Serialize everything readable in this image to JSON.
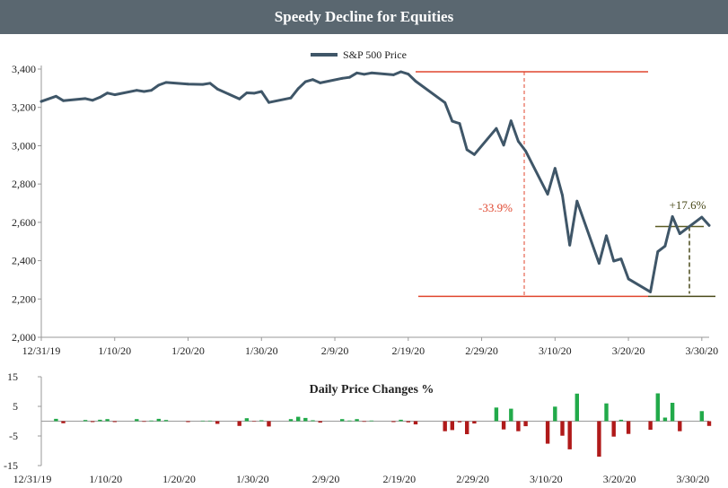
{
  "chart_data": [
    {
      "type": "line",
      "title": "Speedy Decline for Equities",
      "legend": [
        "S&P 500 Price"
      ],
      "legend_position": "top-center",
      "ylim": [
        2000,
        3400
      ],
      "yticks": [
        2000,
        2200,
        2400,
        2600,
        2800,
        3000,
        3200,
        3400
      ],
      "ytick_labels": [
        "2,000",
        "2,200",
        "2,400",
        "2,600",
        "2,800",
        "3,000",
        "3,200",
        "3,400"
      ],
      "xlim_days": [
        0,
        91
      ],
      "xtick_labels": [
        "12/31/19",
        "1/10/20",
        "1/20/20",
        "1/30/20",
        "2/9/20",
        "2/19/20",
        "2/29/20",
        "3/10/20",
        "3/20/20",
        "3/30/20"
      ],
      "series": [
        {
          "name": "S&P 500 Price",
          "color": "#3f5668",
          "points": [
            [
              0,
              3231
            ],
            [
              2,
              3258
            ],
            [
              3,
              3235
            ],
            [
              6,
              3246
            ],
            [
              7,
              3237
            ],
            [
              8,
              3253
            ],
            [
              9,
              3275
            ],
            [
              10,
              3266
            ],
            [
              13,
              3289
            ],
            [
              14,
              3283
            ],
            [
              15,
              3289
            ],
            [
              16,
              3316
            ],
            [
              17,
              3330
            ],
            [
              20,
              3322
            ],
            [
              22,
              3320
            ],
            [
              23,
              3326
            ],
            [
              24,
              3296
            ],
            [
              27,
              3244
            ],
            [
              28,
              3276
            ],
            [
              29,
              3274
            ],
            [
              30,
              3283
            ],
            [
              31,
              3226
            ],
            [
              34,
              3249
            ],
            [
              35,
              3298
            ],
            [
              36,
              3334
            ],
            [
              37,
              3345
            ],
            [
              38,
              3328
            ],
            [
              41,
              3352
            ],
            [
              42,
              3357
            ],
            [
              43,
              3380
            ],
            [
              44,
              3373
            ],
            [
              45,
              3380
            ],
            [
              48,
              3370
            ],
            [
              49,
              3386
            ],
            [
              50,
              3374
            ],
            [
              51,
              3337
            ],
            [
              55,
              3225
            ],
            [
              56,
              3128
            ],
            [
              57,
              3116
            ],
            [
              58,
              2979
            ],
            [
              59,
              2954
            ],
            [
              62,
              3090
            ],
            [
              63,
              3003
            ],
            [
              64,
              3130
            ],
            [
              65,
              3023
            ],
            [
              66,
              2972
            ],
            [
              69,
              2747
            ],
            [
              70,
              2882
            ],
            [
              71,
              2741
            ],
            [
              72,
              2481
            ],
            [
              73,
              2711
            ],
            [
              76,
              2386
            ],
            [
              77,
              2530
            ],
            [
              78,
              2398
            ],
            [
              79,
              2409
            ],
            [
              80,
              2305
            ],
            [
              83,
              2237
            ],
            [
              84,
              2447
            ],
            [
              85,
              2476
            ],
            [
              86,
              2630
            ],
            [
              87,
              2541
            ],
            [
              90,
              2627
            ],
            [
              91,
              2584
            ]
          ]
        }
      ],
      "annotations": {
        "peak_level": 3386,
        "trough_level": 2237,
        "rebound_level": 2630,
        "decline_label": "-33.9%",
        "rebound_label": "+17.6%"
      }
    },
    {
      "type": "bar",
      "title": "Daily Price Changes %",
      "ylim": [
        -15,
        15
      ],
      "yticks": [
        15,
        5,
        -5,
        -15
      ],
      "ytick_labels": [
        "15",
        "5",
        "-5",
        "-15"
      ],
      "xtick_labels": [
        "12/31/19",
        "1/10/20",
        "1/20/20",
        "1/30/20",
        "2/9/20",
        "2/19/20",
        "2/29/20",
        "3/10/20",
        "3/20/20",
        "3/30/20"
      ],
      "positive_color": "#22aa4a",
      "negative_color": "#b01a1a",
      "values": [
        [
          2,
          0.8
        ],
        [
          3,
          -0.7
        ],
        [
          6,
          0.4
        ],
        [
          7,
          -0.3
        ],
        [
          8,
          0.5
        ],
        [
          9,
          0.7
        ],
        [
          10,
          -0.3
        ],
        [
          13,
          0.7
        ],
        [
          14,
          -0.2
        ],
        [
          15,
          0.2
        ],
        [
          16,
          0.8
        ],
        [
          17,
          0.4
        ],
        [
          20,
          -0.3
        ],
        [
          22,
          0.0
        ],
        [
          23,
          0.1
        ],
        [
          24,
          -0.9
        ],
        [
          27,
          -1.6
        ],
        [
          28,
          1.0
        ],
        [
          29,
          -0.1
        ],
        [
          30,
          0.3
        ],
        [
          31,
          -1.8
        ],
        [
          34,
          0.7
        ],
        [
          35,
          1.5
        ],
        [
          36,
          1.1
        ],
        [
          37,
          0.3
        ],
        [
          38,
          -0.5
        ],
        [
          41,
          0.7
        ],
        [
          42,
          0.2
        ],
        [
          43,
          0.7
        ],
        [
          44,
          -0.2
        ],
        [
          45,
          0.2
        ],
        [
          48,
          -0.3
        ],
        [
          49,
          0.5
        ],
        [
          50,
          -0.4
        ],
        [
          51,
          -1.1
        ],
        [
          55,
          -3.4
        ],
        [
          56,
          -3.0
        ],
        [
          57,
          -0.4
        ],
        [
          58,
          -4.4
        ],
        [
          59,
          -0.8
        ],
        [
          62,
          4.6
        ],
        [
          63,
          -2.8
        ],
        [
          64,
          4.2
        ],
        [
          65,
          -3.4
        ],
        [
          66,
          -1.7
        ],
        [
          69,
          -7.6
        ],
        [
          70,
          4.9
        ],
        [
          71,
          -4.9
        ],
        [
          72,
          -9.5
        ],
        [
          73,
          9.3
        ],
        [
          76,
          -12.0
        ],
        [
          77,
          6.0
        ],
        [
          78,
          -5.2
        ],
        [
          79,
          0.5
        ],
        [
          80,
          -4.3
        ],
        [
          83,
          -2.9
        ],
        [
          84,
          9.4
        ],
        [
          85,
          1.2
        ],
        [
          86,
          6.2
        ],
        [
          87,
          -3.4
        ],
        [
          90,
          3.4
        ],
        [
          91,
          -1.6
        ]
      ]
    }
  ]
}
